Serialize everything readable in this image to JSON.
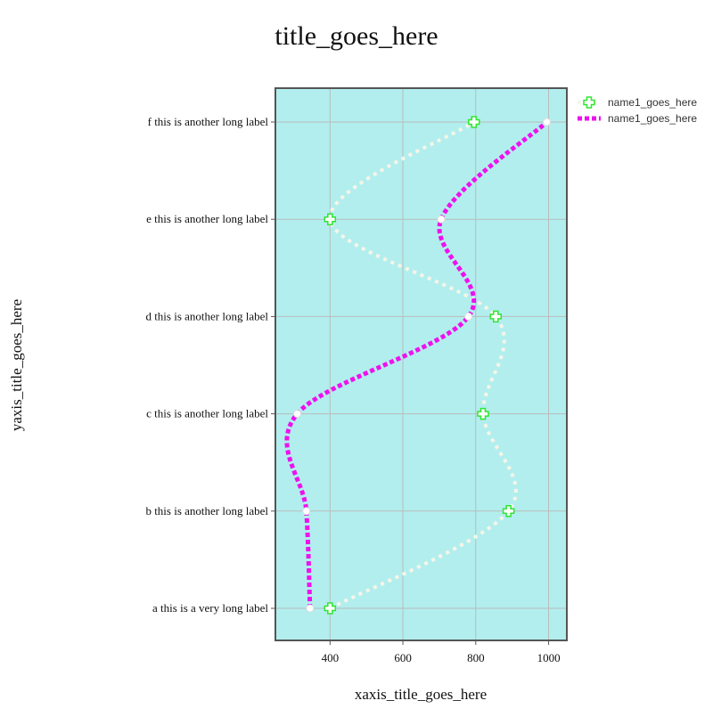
{
  "chart_data": {
    "type": "line",
    "title": "title_goes_here",
    "xlabel": "xaxis_title_goes_here",
    "ylabel": "yaxis_title_goes_here",
    "xlim": [
      250,
      1050
    ],
    "x_ticks": [
      400,
      600,
      800,
      1000
    ],
    "categories": [
      "a this is a very long label",
      "b this is another long label",
      "c this is another long label",
      "d this is another long label",
      "e this is another long label",
      "f this is another long label"
    ],
    "grid": true,
    "legend_position": "top-right",
    "colors": {
      "plot_background": "#b2eeee",
      "plot_border": "#555555",
      "grid": "#bbbbbb",
      "series1_line": "#f5f5e8",
      "series1_marker": "#2ee62e",
      "series2_line": "#ee11ee",
      "series2_marker": "#ffffff"
    },
    "series": [
      {
        "name": "name1_goes_here",
        "orientation": "h",
        "line_style": "dotted",
        "marker": "cross",
        "values": [
          400,
          890,
          820,
          855,
          400,
          795
        ]
      },
      {
        "name": "name1_goes_here",
        "orientation": "h",
        "line_style": "dotted",
        "marker": "circle-open",
        "values": [
          345,
          335,
          310,
          780,
          705,
          995
        ]
      }
    ]
  }
}
